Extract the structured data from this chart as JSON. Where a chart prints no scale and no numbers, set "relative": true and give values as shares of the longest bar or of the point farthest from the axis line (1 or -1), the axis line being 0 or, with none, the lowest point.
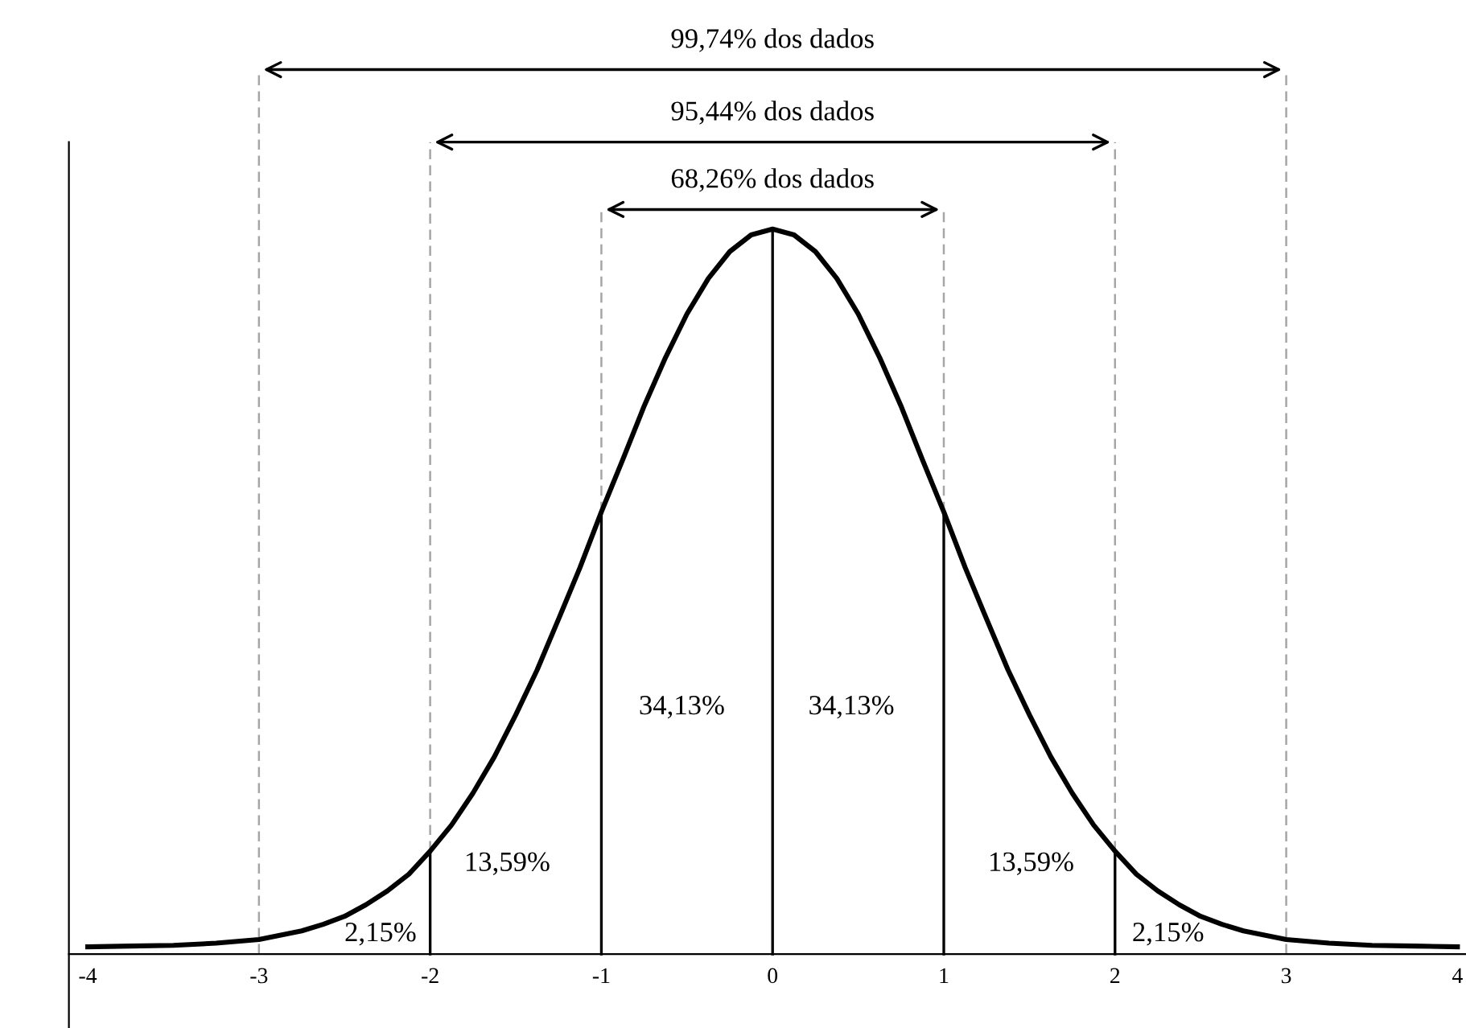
{
  "chart_data": {
    "type": "line",
    "relative": true,
    "tick_labels": "x",
    "line_style": "solid",
    "marker": "none",
    "x": [
      -4,
      -3.75,
      -3.5,
      -3.25,
      -3,
      -2.75,
      -2.625,
      -2.5,
      -2.375,
      -2.25,
      -2.125,
      -2,
      -1.875,
      -1.75,
      -1.625,
      -1.5,
      -1.375,
      -1.25,
      -1.125,
      -1,
      -0.875,
      -0.75,
      -0.625,
      -0.5,
      -0.375,
      -0.25,
      -0.125,
      0,
      0.125,
      0.25,
      0.375,
      0.5,
      0.625,
      0.75,
      0.875,
      1,
      1.125,
      1.25,
      1.375,
      1.5,
      1.625,
      1.75,
      1.875,
      2,
      2.125,
      2.25,
      2.375,
      2.5,
      2.625,
      2.75,
      3,
      3.25,
      3.5,
      3.75,
      4
    ],
    "series": [
      {
        "color": "#000000",
        "values": [
          0.01,
          0.011,
          0.012,
          0.015,
          0.02,
          0.032,
          0.041,
          0.052,
          0.068,
          0.087,
          0.11,
          0.142,
          0.178,
          0.222,
          0.272,
          0.33,
          0.392,
          0.462,
          0.533,
          0.61,
          0.682,
          0.756,
          0.823,
          0.883,
          0.932,
          0.969,
          0.992,
          1,
          0.992,
          0.969,
          0.932,
          0.883,
          0.823,
          0.756,
          0.682,
          0.61,
          0.533,
          0.462,
          0.392,
          0.33,
          0.272,
          0.222,
          0.178,
          0.142,
          0.11,
          0.087,
          0.068,
          0.052,
          0.041,
          0.032,
          0.02,
          0.015,
          0.012,
          0.011,
          0.01
        ]
      }
    ],
    "xlim": [
      -4.11,
      4.05
    ],
    "xticks": [
      -4,
      -3,
      -2,
      -1,
      0,
      1,
      2,
      3,
      4
    ],
    "ref_lines": [
      {
        "axis": "x",
        "value": -1,
        "color": "#a6a6a6",
        "line_style": "dashed"
      },
      {
        "axis": "x",
        "value": 1,
        "color": "#a6a6a6",
        "line_style": "dashed"
      },
      {
        "axis": "x",
        "value": -2,
        "color": "#000000",
        "line_style": "solid"
      },
      {
        "axis": "x",
        "value": -1,
        "color": "#000000",
        "line_style": "solid"
      },
      {
        "axis": "x",
        "value": 0,
        "color": "#000000",
        "line_style": "solid"
      },
      {
        "axis": "x",
        "value": 1,
        "color": "#000000",
        "line_style": "solid"
      },
      {
        "axis": "x",
        "value": 2,
        "color": "#000000",
        "line_style": "solid"
      },
      {
        "axis": "x",
        "value": -2,
        "color": "#a6a6a6",
        "line_style": "dashed"
      },
      {
        "axis": "x",
        "value": 2,
        "color": "#a6a6a6",
        "line_style": "dashed"
      },
      {
        "axis": "x",
        "value": -3,
        "color": "#a6a6a6",
        "line_style": "dashed"
      },
      {
        "axis": "x",
        "value": 3,
        "color": "#a6a6a6",
        "line_style": "dashed"
      }
    ],
    "annotations": [
      "68,26% dos dados",
      "95,44% dos dados",
      "99,74% dos dados",
      "34,13%",
      "34,13%",
      "13,59%",
      "13,59%",
      "2,15%",
      "2,15%"
    ]
  }
}
